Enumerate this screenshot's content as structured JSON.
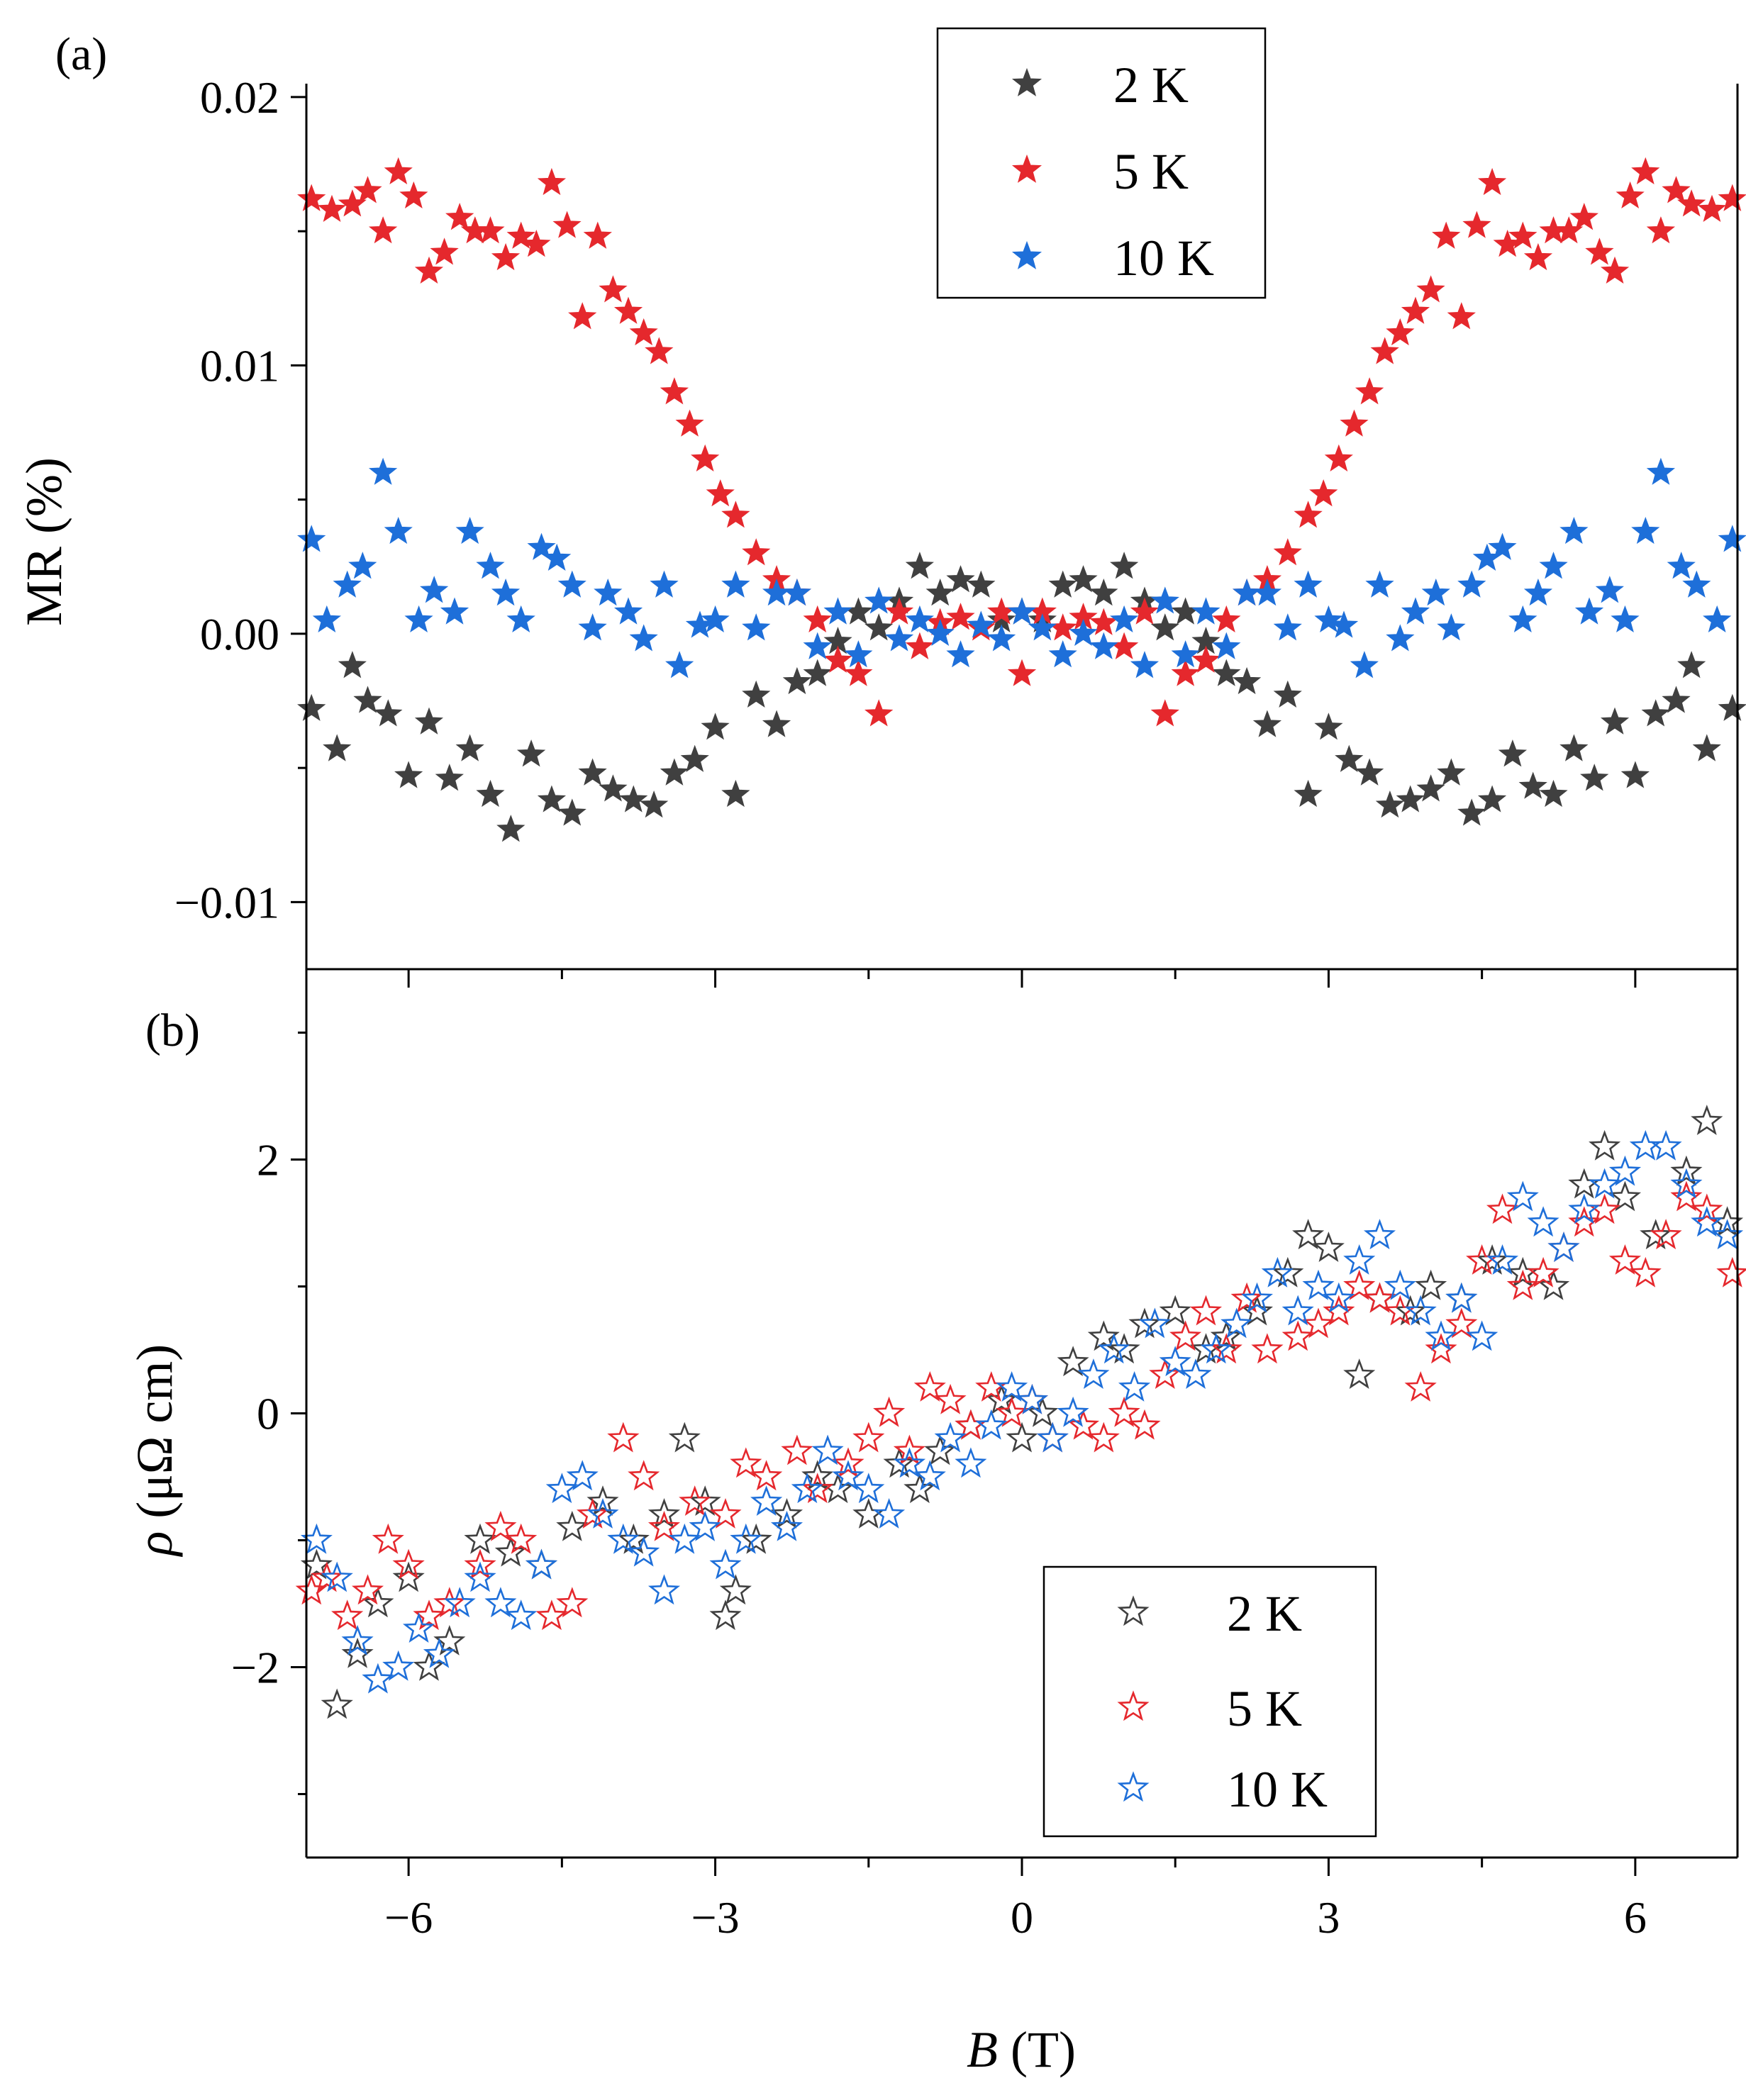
{
  "chart_data": [
    {
      "type": "scatter",
      "panel_label": "(a)",
      "title": "",
      "xlabel": "B (T)",
      "xlabel_var": "B",
      "xlabel_unit": " (T)",
      "ylabel": "MR (%)",
      "xlim": [
        -7,
        7
      ],
      "ylim": [
        -0.0125,
        0.0205
      ],
      "x_ticks": [
        -6,
        -3,
        0,
        3,
        6
      ],
      "y_ticks": [
        -0.01,
        0.0,
        0.01,
        0.02
      ],
      "y_tick_labels": [
        "−0.01",
        "0.00",
        "0.01",
        "0.02"
      ],
      "marker": "filled-star",
      "legend_position": "top-center",
      "series": [
        {
          "name": "2 K",
          "color": "#404040",
          "x": [
            -6.95,
            -6.7,
            -6.55,
            -6.4,
            -6.2,
            -6.0,
            -5.8,
            -5.6,
            -5.4,
            -5.2,
            -5.0,
            -4.8,
            -4.6,
            -4.4,
            -4.2,
            -4.0,
            -3.8,
            -3.6,
            -3.4,
            -3.2,
            -3.0,
            -2.8,
            -2.6,
            -2.4,
            -2.2,
            -2.0,
            -1.8,
            -1.6,
            -1.4,
            -1.2,
            -1.0,
            -0.8,
            -0.6,
            -0.4,
            -0.2,
            0.0,
            0.2,
            0.4,
            0.6,
            0.8,
            1.0,
            1.2,
            1.4,
            1.6,
            1.8,
            2.0,
            2.2,
            2.4,
            2.6,
            2.8,
            3.0,
            3.2,
            3.4,
            3.6,
            3.8,
            4.0,
            4.2,
            4.4,
            4.6,
            4.8,
            5.0,
            5.2,
            5.4,
            5.6,
            5.8,
            6.0,
            6.2,
            6.4,
            6.55,
            6.7,
            6.95
          ],
          "y": [
            -0.0028,
            -0.0043,
            -0.0012,
            -0.0025,
            -0.003,
            -0.0053,
            -0.0033,
            -0.0054,
            -0.0043,
            -0.006,
            -0.0073,
            -0.0045,
            -0.0062,
            -0.0067,
            -0.0052,
            -0.0058,
            -0.0062,
            -0.0064,
            -0.0052,
            -0.0047,
            -0.0035,
            -0.006,
            -0.0023,
            -0.0034,
            -0.0018,
            -0.0015,
            -0.0003,
            0.0008,
            0.0002,
            0.0012,
            0.0025,
            0.0015,
            0.002,
            0.0018,
            0.0005,
            0.0008,
            0.0005,
            0.0018,
            0.002,
            0.0015,
            0.0025,
            0.0012,
            0.0002,
            0.0008,
            -0.0003,
            -0.0015,
            -0.0018,
            -0.0034,
            -0.0023,
            -0.006,
            -0.0035,
            -0.0047,
            -0.0052,
            -0.0064,
            -0.0062,
            -0.0058,
            -0.0052,
            -0.0067,
            -0.0062,
            -0.0045,
            -0.0057,
            -0.006,
            -0.0043,
            -0.0054,
            -0.0033,
            -0.0053,
            -0.003,
            -0.0025,
            -0.0012,
            -0.0043,
            -0.0028
          ]
        },
        {
          "name": "5 K",
          "color": "#e5282d",
          "x": [
            -6.95,
            -6.75,
            -6.55,
            -6.4,
            -6.25,
            -6.1,
            -5.95,
            -5.8,
            -5.65,
            -5.5,
            -5.35,
            -5.2,
            -5.05,
            -4.9,
            -4.75,
            -4.6,
            -4.45,
            -4.3,
            -4.15,
            -4.0,
            -3.85,
            -3.7,
            -3.55,
            -3.4,
            -3.25,
            -3.1,
            -2.95,
            -2.8,
            -2.6,
            -2.4,
            -2.2,
            -2.0,
            -1.8,
            -1.6,
            -1.4,
            -1.2,
            -1.0,
            -0.8,
            -0.6,
            -0.4,
            -0.2,
            0.0,
            0.2,
            0.4,
            0.6,
            0.8,
            1.0,
            1.2,
            1.4,
            1.6,
            1.8,
            2.0,
            2.2,
            2.4,
            2.6,
            2.8,
            2.95,
            3.1,
            3.25,
            3.4,
            3.55,
            3.7,
            3.85,
            4.0,
            4.15,
            4.3,
            4.45,
            4.6,
            4.75,
            4.9,
            5.05,
            5.2,
            5.35,
            5.5,
            5.65,
            5.8,
            5.95,
            6.1,
            6.25,
            6.4,
            6.55,
            6.75,
            6.95
          ],
          "y": [
            0.0162,
            0.0158,
            0.016,
            0.0165,
            0.015,
            0.0172,
            0.0163,
            0.0135,
            0.0142,
            0.0155,
            0.015,
            0.015,
            0.014,
            0.0148,
            0.0145,
            0.0168,
            0.0152,
            0.0118,
            0.0148,
            0.0128,
            0.012,
            0.0112,
            0.0105,
            0.009,
            0.0078,
            0.0065,
            0.0052,
            0.0044,
            0.003,
            0.002,
            0.0015,
            0.0005,
            -0.001,
            -0.0015,
            -0.003,
            0.0008,
            -0.0005,
            0.0004,
            0.0006,
            0.0002,
            0.0008,
            -0.0015,
            0.0008,
            0.0002,
            0.0006,
            0.0004,
            -0.0005,
            0.0008,
            -0.003,
            -0.0015,
            -0.001,
            0.0005,
            0.0015,
            0.002,
            0.003,
            0.0044,
            0.0052,
            0.0065,
            0.0078,
            0.009,
            0.0105,
            0.0112,
            0.012,
            0.0128,
            0.0148,
            0.0118,
            0.0152,
            0.0168,
            0.0145,
            0.0148,
            0.014,
            0.015,
            0.015,
            0.0155,
            0.0142,
            0.0135,
            0.0163,
            0.0172,
            0.015,
            0.0165,
            0.016,
            0.0158,
            0.0162
          ]
        },
        {
          "name": "10 K",
          "color": "#1e6fd9",
          "x": [
            -6.95,
            -6.8,
            -6.6,
            -6.45,
            -6.25,
            -6.1,
            -5.9,
            -5.75,
            -5.55,
            -5.4,
            -5.2,
            -5.05,
            -4.9,
            -4.7,
            -4.55,
            -4.4,
            -4.2,
            -4.05,
            -3.85,
            -3.7,
            -3.5,
            -3.35,
            -3.15,
            -3.0,
            -2.8,
            -2.6,
            -2.4,
            -2.2,
            -2.0,
            -1.8,
            -1.6,
            -1.4,
            -1.2,
            -1.0,
            -0.8,
            -0.6,
            -0.4,
            -0.2,
            0.0,
            0.2,
            0.4,
            0.6,
            0.8,
            1.0,
            1.2,
            1.4,
            1.6,
            1.8,
            2.0,
            2.2,
            2.4,
            2.6,
            2.8,
            3.0,
            3.15,
            3.35,
            3.5,
            3.7,
            3.85,
            4.05,
            4.2,
            4.4,
            4.55,
            4.7,
            4.9,
            5.05,
            5.2,
            5.4,
            5.55,
            5.75,
            5.9,
            6.1,
            6.25,
            6.45,
            6.6,
            6.8,
            6.95
          ],
          "y": [
            0.0035,
            0.0005,
            0.0018,
            0.0025,
            0.006,
            0.0038,
            0.0005,
            0.0016,
            0.0008,
            0.0038,
            0.0025,
            0.0015,
            0.0005,
            0.0032,
            0.0028,
            0.0018,
            0.0002,
            0.0015,
            0.0008,
            -0.0002,
            0.0018,
            -0.0012,
            0.0003,
            0.0005,
            0.0018,
            0.0002,
            0.0015,
            0.0015,
            -0.0005,
            0.0008,
            -0.0008,
            0.0012,
            -0.0002,
            0.0005,
            0.0,
            -0.0008,
            0.0003,
            -0.0002,
            0.0008,
            0.0002,
            -0.0008,
            0.0,
            -0.0005,
            0.0005,
            -0.0012,
            0.0012,
            -0.0008,
            0.0008,
            -0.0005,
            0.0015,
            0.0015,
            0.0002,
            0.0018,
            0.0005,
            0.0003,
            -0.0012,
            0.0018,
            -0.0002,
            0.0008,
            0.0015,
            0.0002,
            0.0018,
            0.0028,
            0.0032,
            0.0005,
            0.0015,
            0.0025,
            0.0038,
            0.0008,
            0.0016,
            0.0005,
            0.0038,
            0.006,
            0.0025,
            0.0018,
            0.0005,
            0.0035
          ]
        }
      ]
    },
    {
      "type": "scatter",
      "panel_label": "(b)",
      "title": "",
      "xlabel": "B (T)",
      "xlabel_var": "B",
      "xlabel_unit": " (T)",
      "ylabel": "ρ (μΩ cm)",
      "ylabel_var": "ρ",
      "ylabel_unit": " (μΩ cm)",
      "xlim": [
        -7,
        7
      ],
      "ylim": [
        -3.5,
        3.5
      ],
      "x_ticks": [
        -6,
        -3,
        0,
        3,
        6
      ],
      "x_tick_labels": [
        "−6",
        "−3",
        "0",
        "3",
        "6"
      ],
      "y_ticks": [
        -2,
        0,
        2
      ],
      "y_tick_labels": [
        "−2",
        "0",
        "2"
      ],
      "marker": "open-star",
      "legend_position": "bottom-right",
      "series": [
        {
          "name": "2 K",
          "color": "#404040",
          "x": [
            -6.9,
            -6.7,
            -6.5,
            -6.3,
            -6.0,
            -5.8,
            -5.6,
            -5.3,
            -5.0,
            -4.7,
            -4.4,
            -4.1,
            -3.8,
            -3.5,
            -3.3,
            -3.1,
            -2.9,
            -2.8,
            -2.6,
            -2.3,
            -2.0,
            -1.8,
            -1.5,
            -1.2,
            -1.0,
            -0.8,
            -0.5,
            -0.2,
            0.0,
            0.2,
            0.5,
            0.8,
            1.0,
            1.2,
            1.5,
            1.8,
            2.0,
            2.3,
            2.6,
            2.8,
            3.0,
            3.3,
            3.5,
            3.8,
            4.0,
            4.3,
            4.6,
            4.9,
            5.2,
            5.5,
            5.7,
            5.9,
            6.2,
            6.5,
            6.7,
            6.9
          ],
          "y": [
            -1.2,
            -2.3,
            -1.9,
            -1.5,
            -1.3,
            -2.0,
            -1.8,
            -1.0,
            -1.1,
            -1.2,
            -0.9,
            -0.7,
            -1.0,
            -0.8,
            -0.2,
            -0.7,
            -1.6,
            -1.4,
            -1.0,
            -0.8,
            -0.5,
            -0.6,
            -0.8,
            -0.4,
            -0.6,
            -0.3,
            -0.1,
            0.1,
            -0.2,
            0.0,
            0.4,
            0.6,
            0.5,
            0.7,
            0.8,
            0.5,
            0.6,
            0.8,
            1.1,
            1.4,
            1.3,
            0.3,
            0.9,
            0.8,
            1.0,
            0.9,
            1.2,
            1.1,
            1.0,
            1.8,
            2.1,
            1.7,
            1.4,
            1.9,
            2.3,
            1.5
          ]
        },
        {
          "name": "5 K",
          "color": "#e5282d",
          "x": [
            -6.95,
            -6.8,
            -6.6,
            -6.4,
            -6.2,
            -6.0,
            -5.8,
            -5.6,
            -5.3,
            -5.1,
            -4.9,
            -4.6,
            -4.4,
            -4.2,
            -3.9,
            -3.7,
            -3.5,
            -3.2,
            -2.9,
            -2.7,
            -2.5,
            -2.2,
            -2.0,
            -1.7,
            -1.5,
            -1.3,
            -1.1,
            -0.9,
            -0.7,
            -0.5,
            -0.3,
            -0.1,
            0.1,
            0.3,
            0.6,
            0.8,
            1.0,
            1.2,
            1.4,
            1.6,
            1.8,
            2.0,
            2.2,
            2.4,
            2.7,
            2.9,
            3.1,
            3.3,
            3.5,
            3.7,
            3.9,
            4.1,
            4.3,
            4.5,
            4.7,
            4.9,
            5.1,
            5.3,
            5.5,
            5.7,
            5.9,
            6.1,
            6.3,
            6.5,
            6.7,
            6.95
          ],
          "y": [
            -1.4,
            -1.3,
            -1.6,
            -1.4,
            -1.0,
            -1.2,
            -1.6,
            -1.5,
            -1.2,
            -0.9,
            -1.0,
            -1.6,
            -1.5,
            -0.8,
            -0.2,
            -0.5,
            -0.9,
            -0.7,
            -0.8,
            -0.4,
            -0.5,
            -0.3,
            -0.6,
            -0.4,
            -0.2,
            0.0,
            -0.3,
            0.2,
            0.1,
            -0.1,
            0.2,
            0.0,
            0.1,
            -0.2,
            -0.1,
            -0.2,
            0.0,
            -0.1,
            0.3,
            0.6,
            0.8,
            0.5,
            0.9,
            0.5,
            0.6,
            0.7,
            0.8,
            1.0,
            0.9,
            0.8,
            0.2,
            0.5,
            0.7,
            1.2,
            1.6,
            1.0,
            1.1,
            1.3,
            1.5,
            1.6,
            1.2,
            1.1,
            1.4,
            1.7,
            1.6,
            1.1
          ]
        },
        {
          "name": "10 K",
          "color": "#1e6fd9",
          "x": [
            -6.9,
            -6.7,
            -6.5,
            -6.3,
            -6.1,
            -5.9,
            -5.7,
            -5.5,
            -5.3,
            -5.1,
            -4.9,
            -4.7,
            -4.5,
            -4.3,
            -4.1,
            -3.9,
            -3.7,
            -3.5,
            -3.3,
            -3.1,
            -2.9,
            -2.7,
            -2.5,
            -2.3,
            -2.1,
            -1.9,
            -1.7,
            -1.5,
            -1.3,
            -1.1,
            -0.9,
            -0.7,
            -0.5,
            -0.3,
            -0.1,
            0.1,
            0.3,
            0.5,
            0.7,
            0.9,
            1.1,
            1.3,
            1.5,
            1.7,
            1.9,
            2.1,
            2.3,
            2.5,
            2.7,
            2.9,
            3.1,
            3.3,
            3.5,
            3.7,
            3.9,
            4.1,
            4.3,
            4.5,
            4.7,
            4.9,
            5.1,
            5.3,
            5.5,
            5.7,
            5.9,
            6.1,
            6.3,
            6.5,
            6.7,
            6.9
          ],
          "y": [
            -1.0,
            -1.3,
            -1.8,
            -2.1,
            -2.0,
            -1.7,
            -1.9,
            -1.5,
            -1.3,
            -1.5,
            -1.6,
            -1.2,
            -0.6,
            -0.5,
            -0.8,
            -1.0,
            -1.1,
            -1.4,
            -1.0,
            -0.9,
            -1.2,
            -1.0,
            -0.7,
            -0.9,
            -0.6,
            -0.3,
            -0.5,
            -0.6,
            -0.8,
            -0.4,
            -0.5,
            -0.2,
            -0.4,
            -0.1,
            0.2,
            0.1,
            -0.2,
            0.0,
            0.3,
            0.5,
            0.2,
            0.7,
            0.4,
            0.3,
            0.5,
            0.7,
            0.9,
            1.1,
            0.8,
            1.0,
            0.9,
            1.2,
            1.4,
            1.0,
            0.8,
            0.6,
            0.9,
            0.6,
            1.2,
            1.7,
            1.5,
            1.3,
            1.6,
            1.8,
            1.9,
            2.1,
            2.1,
            1.8,
            1.5,
            1.4
          ]
        }
      ]
    }
  ]
}
